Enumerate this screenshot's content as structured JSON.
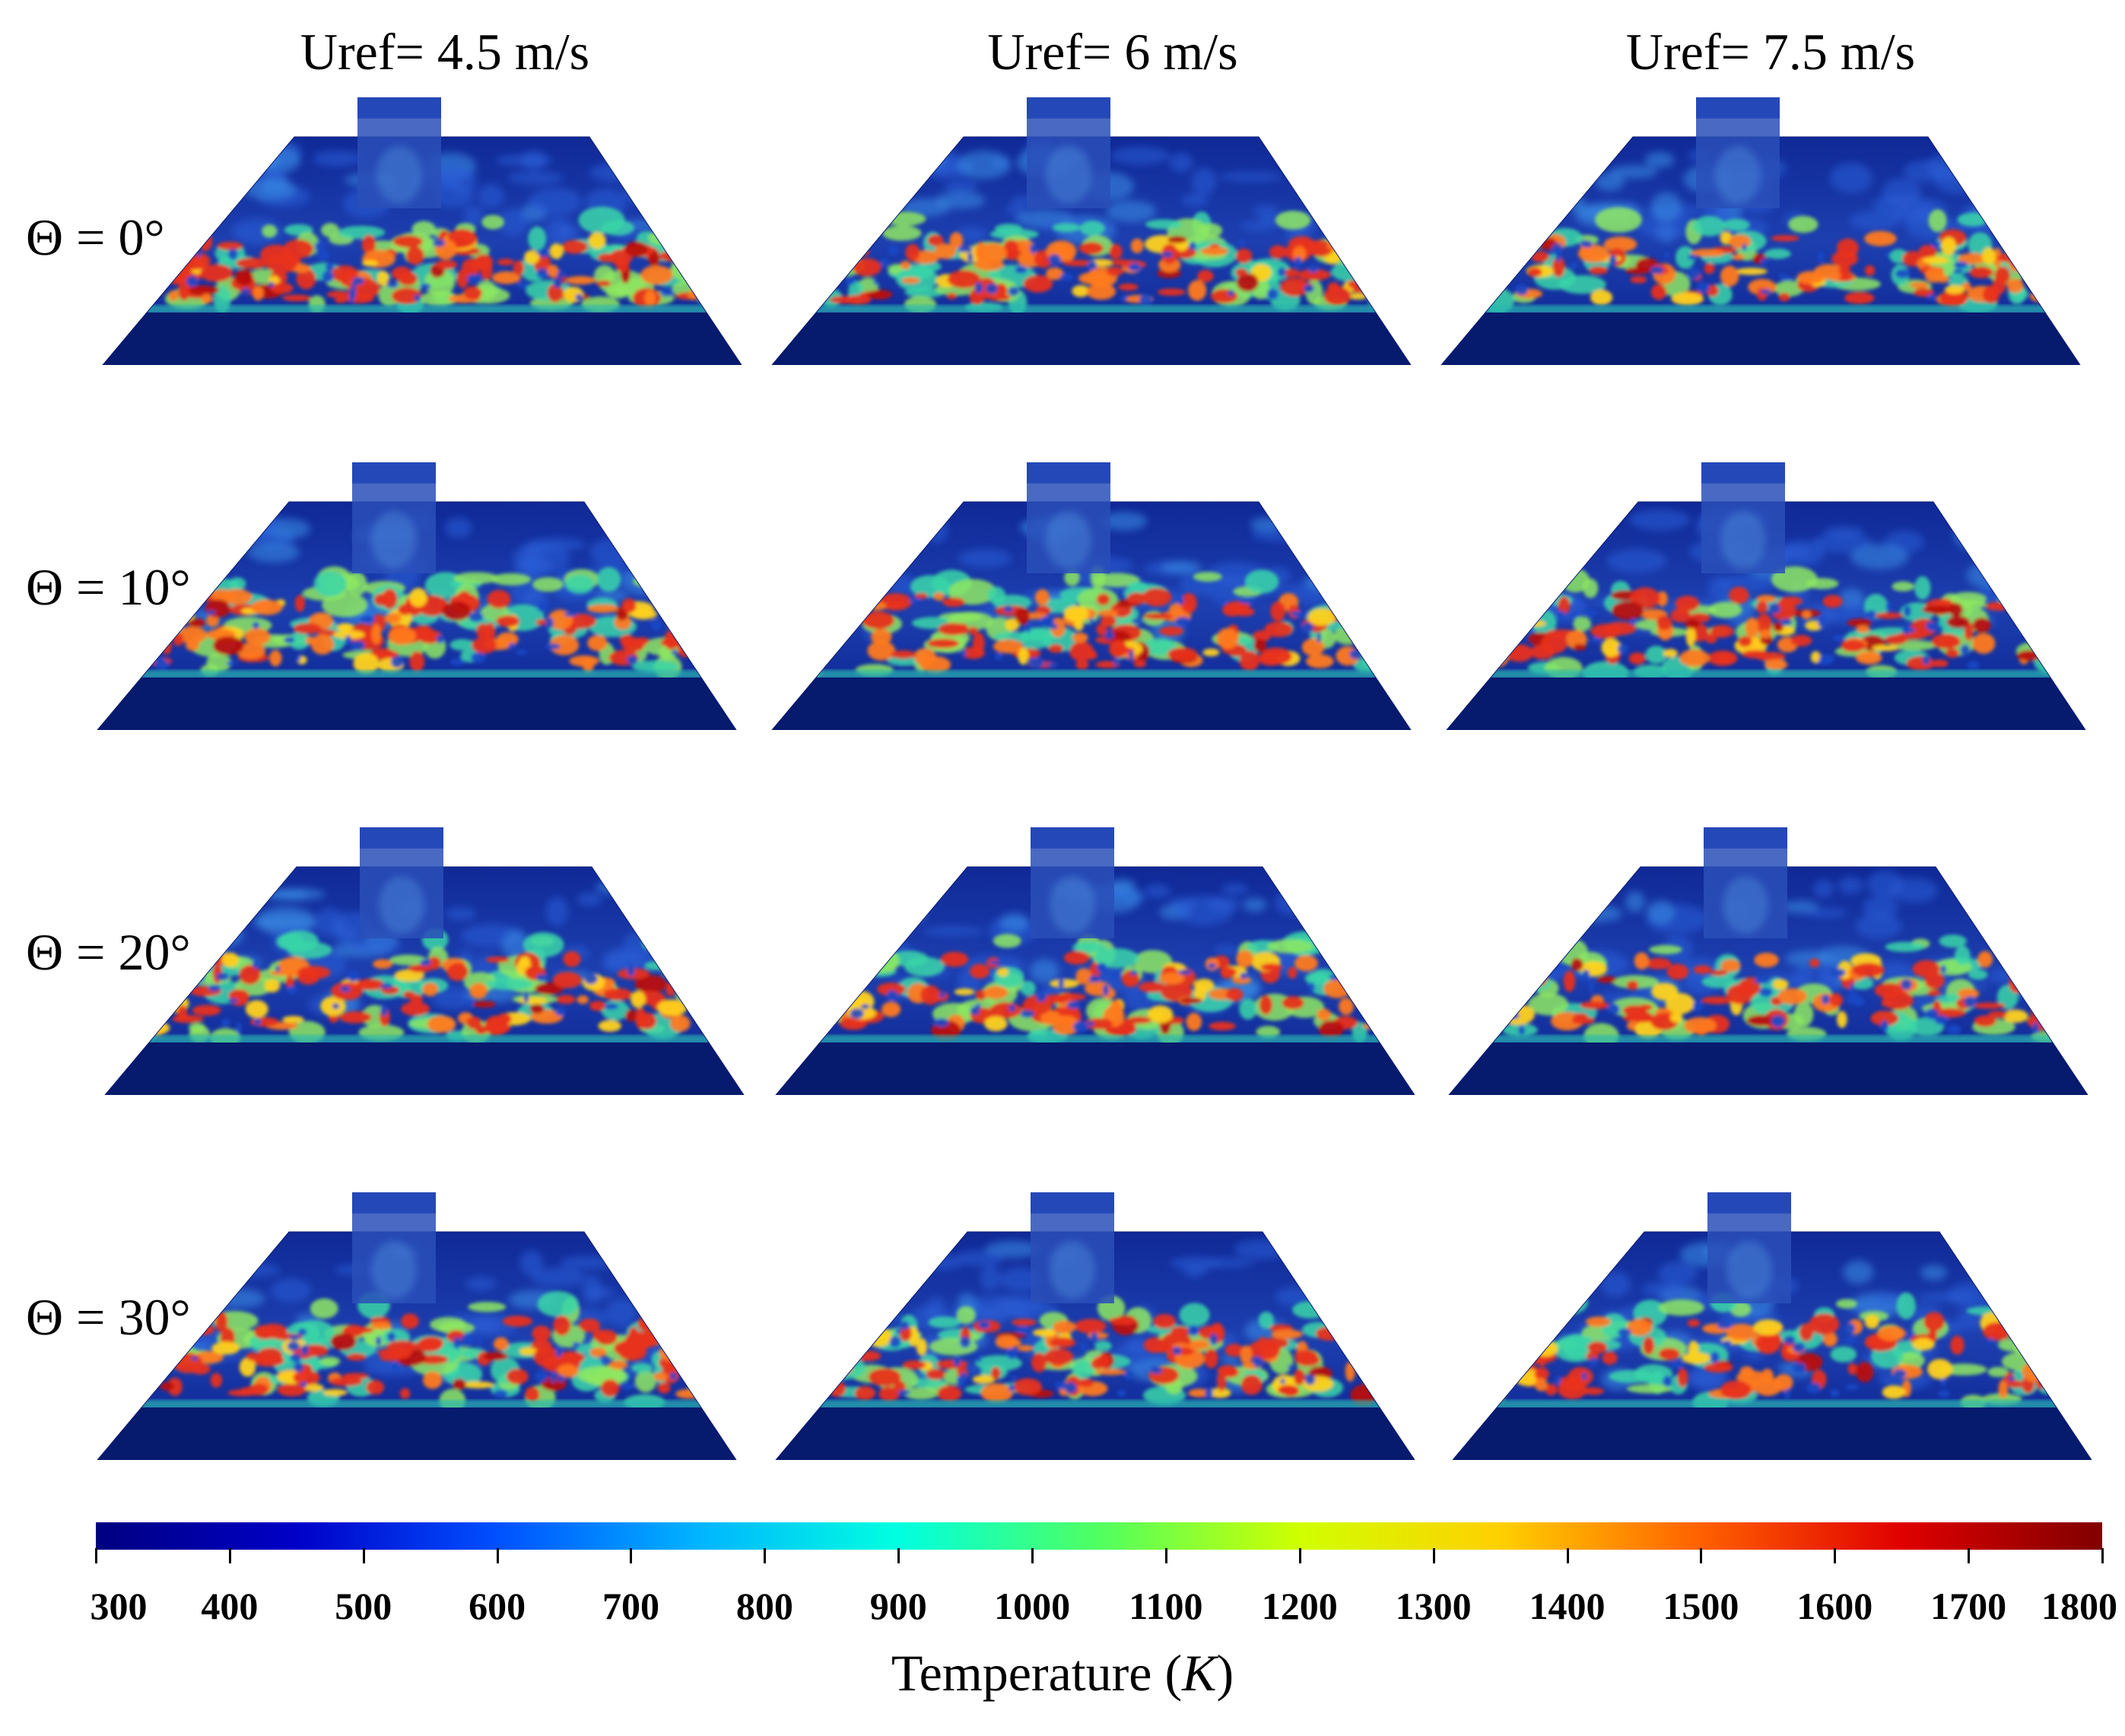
{
  "figure": {
    "columns": [
      {
        "label": "Uref= 4.5 m/s",
        "hot_fraction": 0.72,
        "front_density": 1.0
      },
      {
        "label": "Uref= 6 m/s",
        "hot_fraction": 0.66,
        "front_density": 0.9
      },
      {
        "label": "Uref= 7.5 m/s",
        "hot_fraction": 0.58,
        "front_density": 0.8
      }
    ],
    "rows": [
      {
        "label": "Θ = 0°",
        "front_depth": 0.25
      },
      {
        "label": "Θ = 10°",
        "front_depth": 0.45
      },
      {
        "label": "Θ = 20°",
        "front_depth": 0.52
      },
      {
        "label": "Θ = 30°",
        "front_depth": 0.57
      }
    ]
  },
  "colorbar": {
    "title_prefix": "Temperature (",
    "title_unit": "K",
    "title_suffix": ")",
    "min": 300,
    "max": 1800,
    "ticks": [
      "300",
      "400",
      "500",
      "600",
      "700",
      "800",
      "900",
      "1000",
      "1100",
      "1200",
      "1300",
      "1400",
      "1500",
      "1600",
      "1700",
      "1800"
    ],
    "colormap": [
      "#000080",
      "#0000c8",
      "#0050ff",
      "#00b4ff",
      "#00ffe0",
      "#50ff60",
      "#d0ff00",
      "#ffd000",
      "#ff6000",
      "#e00000",
      "#800000"
    ]
  },
  "colors": {
    "cold": "#0a1f8c",
    "deep_cold": "#061a6e",
    "cool": "#2a5fd8",
    "warm": "#4fd6a0",
    "hot": "#e8301a",
    "object": "#2a4fb8"
  }
}
